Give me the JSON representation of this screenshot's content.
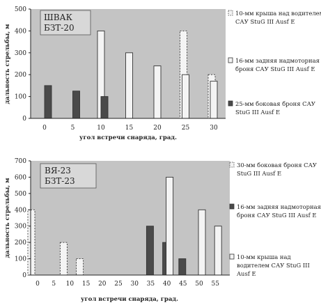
{
  "chart_data": [
    {
      "type": "bar",
      "title_lines": [
        "ШВАК",
        "БЗТ-20"
      ],
      "xlabel": "угол встречи снаряда, град.",
      "ylabel": "дальность стрельбы, м",
      "ylim": [
        0,
        500
      ],
      "yticks": [
        0,
        100,
        200,
        300,
        400,
        500
      ],
      "xticks": [
        0,
        5,
        10,
        15,
        20,
        25,
        30
      ],
      "grid": false,
      "legend_position": "right",
      "series": [
        {
          "name": "10-мм крыша над водителем САУ StuG III Ausf E",
          "style": "dotted",
          "points": [
            {
              "x": 25,
              "y": 400
            },
            {
              "x": 30,
              "y": 200
            }
          ],
          "legend_lines": [
            "10-мм крыша над водителем",
            "САУ StuG III Ausf E"
          ]
        },
        {
          "name": "16-мм задняя надмоторная броня САУ StuG III Ausf E",
          "style": "white",
          "points": [
            {
              "x": 10,
              "y": 400
            },
            {
              "x": 15,
              "y": 300
            },
            {
              "x": 20,
              "y": 240
            },
            {
              "x": 25,
              "y": 200
            },
            {
              "x": 30,
              "y": 170
            }
          ],
          "legend_lines": [
            "16-мм задняя надмоторная",
            "броня САУ StuG III Ausf E"
          ]
        },
        {
          "name": "25-мм боковая броня САУ StuG III Ausf E",
          "style": "dark",
          "points": [
            {
              "x": 0,
              "y": 150
            },
            {
              "x": 5,
              "y": 125
            },
            {
              "x": 10,
              "y": 100
            }
          ],
          "legend_lines": [
            "25-мм боковая броня САУ",
            "StuG III Ausf E"
          ]
        }
      ]
    },
    {
      "type": "bar",
      "title_lines": [
        "ВЯ-23",
        "БЗТ-23"
      ],
      "xlabel": "угол встречи снаряда, град.",
      "ylabel": "дальность стрельбы, м",
      "ylim": [
        0,
        700
      ],
      "yticks": [
        0,
        100,
        200,
        300,
        400,
        500,
        600,
        700
      ],
      "xticks": [
        0,
        5,
        10,
        15,
        20,
        25,
        30,
        35,
        40,
        45,
        50,
        55
      ],
      "grid": false,
      "legend_position": "right",
      "series": [
        {
          "name": "30-мм боковая броня САУ StuG III Ausf E",
          "style": "dotted",
          "points": [
            {
              "x": 0,
              "y": 400
            },
            {
              "x": 10,
              "y": 200
            },
            {
              "x": 15,
              "y": 100
            }
          ],
          "legend_lines": [
            "30-мм боковая броня САУ",
            "StuG III Ausf E"
          ]
        },
        {
          "name": "16-мм задняя надмоторная броня САУ StuG III Ausf E",
          "style": "dark",
          "points": [
            {
              "x": 35,
              "y": 300
            },
            {
              "x": 40,
              "y": 200
            },
            {
              "x": 45,
              "y": 100
            }
          ],
          "legend_lines": [
            "16-мм задняя надмоторная",
            "броня САУ StuG III Ausf E"
          ]
        },
        {
          "name": "10-мм крыша над водителем САУ StuG III Ausf E",
          "style": "white",
          "points": [
            {
              "x": 40,
              "y": 600
            },
            {
              "x": 50,
              "y": 400
            },
            {
              "x": 55,
              "y": 300
            }
          ],
          "legend_lines": [
            "10-мм крыша над",
            "водителем САУ StuG III",
            "Ausf E"
          ]
        }
      ]
    }
  ],
  "colors": {
    "plot_bg": "#c4c4c4",
    "dark_bar": "#4a4a4a",
    "white_bar": "#f4f4f4",
    "dotted_bar": "#f4f4f4",
    "outline": "#333333"
  }
}
